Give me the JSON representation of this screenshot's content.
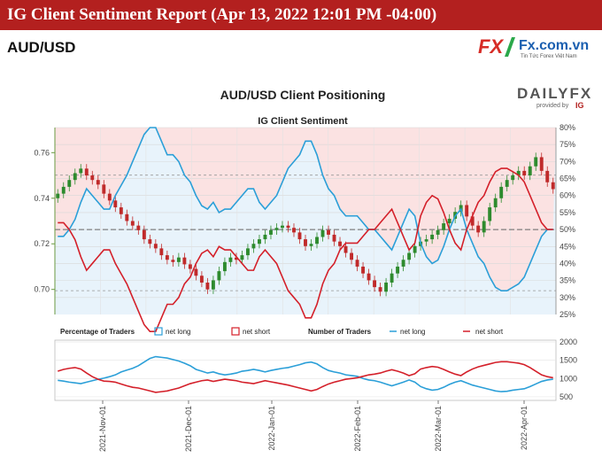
{
  "header": {
    "report_title": "IG Client Sentiment Report (Apr 13, 2022 12:01 PM -04:00)",
    "pair": "AUD/USD"
  },
  "site_logo": {
    "mark": "FX",
    "name": "Fx.com.vn",
    "tagline": "Tin Tức Forex Việt Nam"
  },
  "brand": {
    "name": "DAILYFX",
    "sub": "provided by",
    "ig": "IG"
  },
  "colors": {
    "banner": "#b3201f",
    "net_long": "#2b9fd8",
    "net_short": "#d4202a",
    "candle_up": "#2e8b2e",
    "candle_down": "#c02a2a",
    "price_axis": "#6a9a40"
  },
  "chart_data": [
    {
      "type": "line",
      "title": "AUD/USD Client Positioning",
      "subtitle": "IG Client Sentiment",
      "y_left_ticks": [
        "0.70",
        "0.72",
        "0.74",
        "0.76"
      ],
      "y_left_range": [
        0.689,
        0.771
      ],
      "y_right_ticks": [
        "25%",
        "30%",
        "35%",
        "40%",
        "45%",
        "50%",
        "55%",
        "60%",
        "65%",
        "70%",
        "75%",
        "80%"
      ],
      "y_right_range": [
        25,
        80
      ],
      "price_ohlc_close": [
        0.742,
        0.745,
        0.748,
        0.751,
        0.753,
        0.75,
        0.748,
        0.746,
        0.742,
        0.739,
        0.736,
        0.733,
        0.73,
        0.728,
        0.726,
        0.722,
        0.72,
        0.718,
        0.715,
        0.713,
        0.712,
        0.714,
        0.711,
        0.709,
        0.706,
        0.703,
        0.7,
        0.704,
        0.708,
        0.712,
        0.714,
        0.713,
        0.715,
        0.718,
        0.72,
        0.722,
        0.724,
        0.726,
        0.727,
        0.728,
        0.727,
        0.725,
        0.722,
        0.719,
        0.72,
        0.723,
        0.726,
        0.724,
        0.721,
        0.719,
        0.716,
        0.713,
        0.71,
        0.707,
        0.704,
        0.701,
        0.699,
        0.703,
        0.707,
        0.71,
        0.713,
        0.716,
        0.719,
        0.721,
        0.722,
        0.724,
        0.726,
        0.729,
        0.731,
        0.734,
        0.737,
        0.732,
        0.728,
        0.725,
        0.73,
        0.736,
        0.74,
        0.745,
        0.748,
        0.75,
        0.752,
        0.75,
        0.754,
        0.758,
        0.752,
        0.747,
        0.744
      ],
      "series": [
        {
          "name": "net long",
          "values": [
            48,
            48,
            50,
            53,
            58,
            62,
            60,
            58,
            56,
            56,
            60,
            63,
            66,
            70,
            74,
            78,
            80,
            80,
            76,
            72,
            72,
            70,
            66,
            64,
            60,
            57,
            56,
            58,
            55,
            56,
            56,
            58,
            60,
            62,
            62,
            58,
            56,
            58,
            60,
            64,
            68,
            70,
            72,
            76,
            76,
            72,
            66,
            62,
            60,
            56,
            54,
            54,
            54,
            52,
            50,
            50,
            48,
            46,
            44,
            48,
            52,
            56,
            54,
            46,
            42,
            40,
            41,
            45,
            50,
            54,
            56,
            50,
            46,
            42,
            40,
            36,
            33,
            32,
            32,
            33,
            34,
            36,
            40,
            44,
            48,
            50,
            50
          ]
        },
        {
          "name": "net short",
          "values": [
            52,
            52,
            50,
            47,
            42,
            38,
            40,
            42,
            44,
            44,
            40,
            37,
            34,
            30,
            26,
            22,
            20,
            20,
            24,
            28,
            28,
            30,
            34,
            36,
            40,
            43,
            44,
            42,
            45,
            44,
            44,
            42,
            40,
            38,
            38,
            42,
            44,
            42,
            40,
            36,
            32,
            30,
            28,
            24,
            24,
            28,
            34,
            38,
            40,
            44,
            46,
            46,
            46,
            48,
            50,
            50,
            52,
            54,
            56,
            52,
            48,
            44,
            46,
            54,
            58,
            60,
            59,
            55,
            50,
            46,
            44,
            50,
            54,
            58,
            60,
            64,
            67,
            68,
            68,
            67,
            66,
            64,
            60,
            56,
            52,
            50,
            50
          ]
        }
      ]
    },
    {
      "type": "line",
      "legend_percentage_label": "Percentage of Traders",
      "legend_number_label": "Number of Traders",
      "y_ticks": [
        "500",
        "1000",
        "1500",
        "2000"
      ],
      "y_range": [
        400,
        2050
      ],
      "x_ticks": [
        "2021-Nov-01",
        "2021-Dec-01",
        "2022-Jan-01",
        "2022-Feb-01",
        "2022-Mar-01",
        "2022-Apr-01"
      ],
      "series": [
        {
          "name": "net long",
          "values": [
            950,
            930,
            900,
            880,
            860,
            900,
            940,
            980,
            1010,
            1050,
            1100,
            1180,
            1230,
            1280,
            1350,
            1450,
            1550,
            1600,
            1580,
            1560,
            1520,
            1480,
            1420,
            1350,
            1250,
            1200,
            1150,
            1180,
            1130,
            1100,
            1120,
            1150,
            1200,
            1220,
            1250,
            1220,
            1180,
            1220,
            1250,
            1280,
            1300,
            1340,
            1380,
            1430,
            1450,
            1400,
            1300,
            1220,
            1180,
            1150,
            1100,
            1080,
            1060,
            1000,
            960,
            940,
            900,
            850,
            800,
            850,
            900,
            960,
            900,
            780,
            720,
            680,
            700,
            760,
            840,
            900,
            940,
            880,
            820,
            780,
            740,
            700,
            660,
            640,
            650,
            680,
            700,
            720,
            780,
            850,
            920,
            960,
            980
          ]
        },
        {
          "name": "net short",
          "values": [
            1200,
            1250,
            1280,
            1300,
            1260,
            1150,
            1050,
            980,
            930,
            920,
            900,
            850,
            800,
            760,
            740,
            700,
            660,
            620,
            640,
            660,
            700,
            740,
            800,
            860,
            900,
            940,
            960,
            920,
            950,
            980,
            960,
            940,
            900,
            880,
            860,
            900,
            940,
            910,
            880,
            850,
            820,
            780,
            740,
            700,
            660,
            700,
            780,
            850,
            900,
            940,
            980,
            1000,
            1020,
            1060,
            1100,
            1120,
            1150,
            1200,
            1240,
            1200,
            1150,
            1080,
            1130,
            1260,
            1300,
            1330,
            1310,
            1250,
            1180,
            1120,
            1080,
            1180,
            1260,
            1320,
            1360,
            1400,
            1440,
            1460,
            1460,
            1440,
            1420,
            1380,
            1300,
            1200,
            1100,
            1050,
            1020
          ]
        }
      ]
    }
  ]
}
